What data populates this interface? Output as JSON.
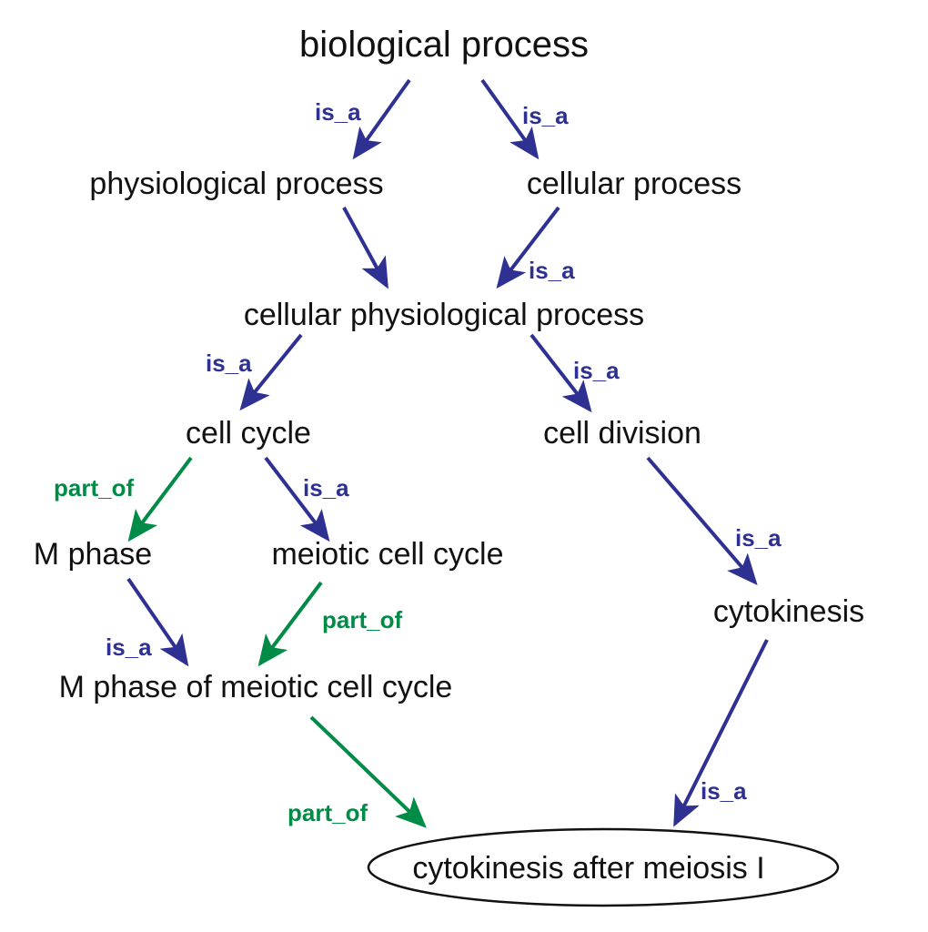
{
  "colors": {
    "is_a": "#2E3192",
    "part_of": "#008B47",
    "text": "#111111",
    "highlight_outline": "#111111"
  },
  "nodes": {
    "biological_process": "biological process",
    "physiological_process": "physiological process",
    "cellular_process": "cellular process",
    "cellular_physiological_process": "cellular physiological process",
    "cell_cycle": "cell cycle",
    "cell_division": "cell division",
    "m_phase": "M phase",
    "meiotic_cell_cycle": "meiotic cell cycle",
    "cytokinesis": "cytokinesis",
    "m_phase_of_meiotic_cell_cycle": "M phase of meiotic cell cycle",
    "cytokinesis_after_meiosis_i": "cytokinesis after meiosis I"
  },
  "highlighted_node": "cytokinesis_after_meiosis_i",
  "relations": {
    "is_a": "is_a",
    "part_of": "part_of"
  },
  "edges": [
    {
      "from": "physiological_process",
      "to": "biological_process",
      "relation": "is_a",
      "label_shown": true
    },
    {
      "from": "cellular_process",
      "to": "biological_process",
      "relation": "is_a",
      "label_shown": true
    },
    {
      "from": "cellular_physiological_process",
      "to": "physiological_process",
      "relation": "is_a",
      "label_shown": false
    },
    {
      "from": "cellular_physiological_process",
      "to": "cellular_process",
      "relation": "is_a",
      "label_shown": true
    },
    {
      "from": "cell_cycle",
      "to": "cellular_physiological_process",
      "relation": "is_a",
      "label_shown": true
    },
    {
      "from": "cell_division",
      "to": "cellular_physiological_process",
      "relation": "is_a",
      "label_shown": true
    },
    {
      "from": "m_phase",
      "to": "cell_cycle",
      "relation": "part_of",
      "label_shown": true
    },
    {
      "from": "meiotic_cell_cycle",
      "to": "cell_cycle",
      "relation": "is_a",
      "label_shown": true
    },
    {
      "from": "cytokinesis",
      "to": "cell_division",
      "relation": "is_a",
      "label_shown": true
    },
    {
      "from": "m_phase_of_meiotic_cell_cycle",
      "to": "m_phase",
      "relation": "is_a",
      "label_shown": true
    },
    {
      "from": "m_phase_of_meiotic_cell_cycle",
      "to": "meiotic_cell_cycle",
      "relation": "part_of",
      "label_shown": true
    },
    {
      "from": "cytokinesis_after_meiosis_i",
      "to": "m_phase_of_meiotic_cell_cycle",
      "relation": "part_of",
      "label_shown": true
    },
    {
      "from": "cytokinesis_after_meiosis_i",
      "to": "cytokinesis",
      "relation": "is_a",
      "label_shown": true
    }
  ]
}
